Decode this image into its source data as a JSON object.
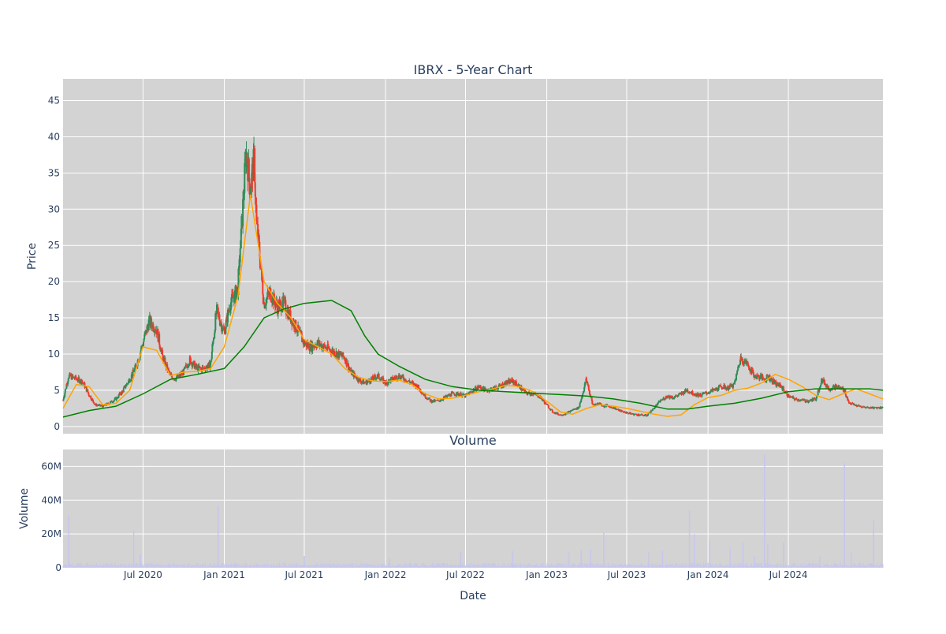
{
  "colors": {
    "plot_bg": "#d3d3d3",
    "grid": "#ffffff",
    "text": "#2a3f5f",
    "candle_up": "#2e8b57",
    "candle_down": "#ef3b2c",
    "ma_short": "#ffa500",
    "ma_long": "#008000",
    "volume_bar": "#c6c6ee"
  },
  "chart_data": [
    {
      "type": "candlestick",
      "title": "IBRX - 5-Year Chart",
      "ylabel": "Price",
      "xlabel": "",
      "ylim": [
        -1,
        48
      ],
      "yticks": [
        0,
        5,
        10,
        15,
        20,
        25,
        30,
        35,
        40,
        45
      ],
      "grid": true,
      "price_series": {
        "x": [
          "2020-01-02",
          "2020-01-15",
          "2020-02-01",
          "2020-02-15",
          "2020-03-01",
          "2020-03-15",
          "2020-04-01",
          "2020-04-15",
          "2020-05-01",
          "2020-05-15",
          "2020-06-01",
          "2020-06-15",
          "2020-07-01",
          "2020-07-15",
          "2020-08-01",
          "2020-08-15",
          "2020-09-01",
          "2020-09-15",
          "2020-10-01",
          "2020-10-15",
          "2020-11-01",
          "2020-11-15",
          "2020-12-01",
          "2020-12-15",
          "2021-01-01",
          "2021-01-15",
          "2021-02-01",
          "2021-02-10",
          "2021-02-20",
          "2021-03-01",
          "2021-03-10",
          "2021-03-15",
          "2021-03-22",
          "2021-04-01",
          "2021-04-15",
          "2021-05-01",
          "2021-05-15",
          "2021-06-01",
          "2021-06-15",
          "2021-07-01",
          "2021-07-15",
          "2021-08-01",
          "2021-08-15",
          "2021-09-01",
          "2021-09-15",
          "2021-10-01",
          "2021-10-15",
          "2021-11-01",
          "2021-11-15",
          "2021-12-01",
          "2021-12-15",
          "2022-01-01",
          "2022-01-15",
          "2022-02-01",
          "2022-02-15",
          "2022-03-01",
          "2022-03-15",
          "2022-04-01",
          "2022-04-15",
          "2022-05-01",
          "2022-05-15",
          "2022-06-01",
          "2022-06-15",
          "2022-07-01",
          "2022-07-15",
          "2022-08-01",
          "2022-08-15",
          "2022-09-01",
          "2022-09-15",
          "2022-10-01",
          "2022-10-15",
          "2022-11-01",
          "2022-11-15",
          "2022-12-01",
          "2022-12-15",
          "2023-01-01",
          "2023-01-15",
          "2023-02-01",
          "2023-02-15",
          "2023-03-01",
          "2023-03-15",
          "2023-04-01",
          "2023-04-15",
          "2023-05-01",
          "2023-05-10",
          "2023-05-15",
          "2023-06-01",
          "2023-06-15",
          "2023-07-01",
          "2023-07-15",
          "2023-08-01",
          "2023-08-15",
          "2023-09-01",
          "2023-09-15",
          "2023-10-01",
          "2023-10-15",
          "2023-11-01",
          "2023-11-15",
          "2023-12-01",
          "2023-12-15",
          "2024-01-01",
          "2024-01-15",
          "2024-02-01",
          "2024-02-15",
          "2024-03-01",
          "2024-03-15",
          "2024-04-01",
          "2024-04-15",
          "2024-05-01",
          "2024-05-10",
          "2024-05-15",
          "2024-06-01",
          "2024-06-15",
          "2024-07-01",
          "2024-07-15",
          "2024-08-01",
          "2024-08-15",
          "2024-09-01",
          "2024-09-15",
          "2024-10-01",
          "2024-10-15",
          "2024-11-01",
          "2024-11-05",
          "2024-11-15",
          "2024-12-01",
          "2024-12-15",
          "2025-01-01",
          "2025-01-15",
          "2025-01-31"
        ],
        "close": [
          3.6,
          7.0,
          6.6,
          6.2,
          4.4,
          3.0,
          2.8,
          3.2,
          3.8,
          4.8,
          6.5,
          8.2,
          11.5,
          14.5,
          13.5,
          9.5,
          7.0,
          6.6,
          7.5,
          9.2,
          8.0,
          8.0,
          8.5,
          16.0,
          13.0,
          17.0,
          19.0,
          28.0,
          38.0,
          33.0,
          37.0,
          28.0,
          24.0,
          17.0,
          18.5,
          16.5,
          17.0,
          15.0,
          13.5,
          11.5,
          11.0,
          11.5,
          11.0,
          10.5,
          10.0,
          9.5,
          7.5,
          6.5,
          6.0,
          6.5,
          7.0,
          6.0,
          6.5,
          7.0,
          6.5,
          6.0,
          5.5,
          4.2,
          3.5,
          3.5,
          4.0,
          4.5,
          4.5,
          4.2,
          4.8,
          5.5,
          5.0,
          5.2,
          5.5,
          6.0,
          6.3,
          5.5,
          4.6,
          4.5,
          4.2,
          3.0,
          2.0,
          1.6,
          1.8,
          2.3,
          2.6,
          6.5,
          3.0,
          3.2,
          2.8,
          2.9,
          2.6,
          2.2,
          1.9,
          1.7,
          1.6,
          1.5,
          2.5,
          3.5,
          4.2,
          4.0,
          4.5,
          5.0,
          4.5,
          4.3,
          4.7,
          5.0,
          5.5,
          5.3,
          5.8,
          9.5,
          8.5,
          7.0,
          6.8,
          6.5,
          7.0,
          6.0,
          5.5,
          4.2,
          3.8,
          3.6,
          3.5,
          3.8,
          6.5,
          5.2,
          5.5,
          5.2,
          5.0,
          3.3,
          2.9,
          2.7,
          2.6,
          2.6,
          2.6
        ]
      },
      "ma_short": {
        "x": [
          "2020-01-02",
          "2020-02-01",
          "2020-03-01",
          "2020-04-01",
          "2020-05-01",
          "2020-06-01",
          "2020-07-01",
          "2020-08-01",
          "2020-09-01",
          "2020-10-01",
          "2020-11-01",
          "2020-12-01",
          "2021-01-01",
          "2021-02-01",
          "2021-03-01",
          "2021-04-01",
          "2021-05-01",
          "2021-06-01",
          "2021-07-01",
          "2021-08-01",
          "2021-09-01",
          "2021-10-01",
          "2021-11-01",
          "2021-12-01",
          "2022-01-01",
          "2022-02-01",
          "2022-03-01",
          "2022-04-01",
          "2022-05-01",
          "2022-06-01",
          "2022-07-01",
          "2022-08-01",
          "2022-09-01",
          "2022-10-01",
          "2022-11-01",
          "2022-12-01",
          "2023-01-01",
          "2023-02-01",
          "2023-03-01",
          "2023-04-01",
          "2023-05-01",
          "2023-06-01",
          "2023-07-01",
          "2023-08-01",
          "2023-09-01",
          "2023-10-01",
          "2023-11-01",
          "2023-12-01",
          "2024-01-01",
          "2024-02-01",
          "2024-03-01",
          "2024-04-01",
          "2024-05-01",
          "2024-06-01",
          "2024-07-01",
          "2024-08-01",
          "2024-09-01",
          "2024-10-01",
          "2024-11-01",
          "2024-12-01",
          "2025-01-01",
          "2025-01-31"
        ],
        "values": [
          2.5,
          5.8,
          5.5,
          3.0,
          3.2,
          5.0,
          11.0,
          10.5,
          7.0,
          7.5,
          7.6,
          8.0,
          11.0,
          18.0,
          32.0,
          20.0,
          17.0,
          15.0,
          12.0,
          11.0,
          10.0,
          8.0,
          6.8,
          6.3,
          6.2,
          6.4,
          5.8,
          4.5,
          3.8,
          3.9,
          4.3,
          4.8,
          5.2,
          5.7,
          5.5,
          4.8,
          3.5,
          2.0,
          1.7,
          2.5,
          3.0,
          2.8,
          2.5,
          2.1,
          1.7,
          1.4,
          1.6,
          3.0,
          4.0,
          4.3,
          5.0,
          5.3,
          6.0,
          7.2,
          6.5,
          5.5,
          4.3,
          3.7,
          4.5,
          5.2,
          4.5,
          3.8
        ]
      },
      "ma_long": {
        "x": [
          "2020-01-02",
          "2020-03-01",
          "2020-05-01",
          "2020-07-01",
          "2020-09-01",
          "2020-11-01",
          "2021-01-01",
          "2021-02-15",
          "2021-04-01",
          "2021-05-15",
          "2021-07-01",
          "2021-09-01",
          "2021-10-15",
          "2021-11-15",
          "2021-12-15",
          "2022-02-01",
          "2022-04-01",
          "2022-06-01",
          "2022-08-01",
          "2022-10-01",
          "2022-12-01",
          "2023-02-01",
          "2023-04-01",
          "2023-06-01",
          "2023-08-01",
          "2023-10-01",
          "2023-11-15",
          "2024-01-01",
          "2024-03-01",
          "2024-05-01",
          "2024-07-01",
          "2024-09-01",
          "2024-11-01",
          "2025-01-01",
          "2025-01-31"
        ],
        "values": [
          1.3,
          2.2,
          2.8,
          4.5,
          6.5,
          7.2,
          8.0,
          11.0,
          15.0,
          16.2,
          17.0,
          17.4,
          16.0,
          12.5,
          10.0,
          8.3,
          6.5,
          5.5,
          5.0,
          4.8,
          4.6,
          4.4,
          4.2,
          3.8,
          3.2,
          2.4,
          2.4,
          2.8,
          3.2,
          3.9,
          4.8,
          5.2,
          5.2,
          5.2,
          5.0
        ]
      },
      "x_ticks": [
        "2020-07-01",
        "2021-01-01",
        "2021-07-01",
        "2022-01-01",
        "2022-07-01",
        "2023-01-01",
        "2023-07-01",
        "2024-01-01",
        "2024-07-01"
      ],
      "x_range": [
        "2020-01-02",
        "2025-01-31"
      ]
    },
    {
      "type": "bar",
      "title": "Volume",
      "ylabel": "Volume",
      "xlabel": "Date",
      "ylim": [
        0,
        70000000
      ],
      "yticks": [
        0,
        20000000,
        40000000,
        60000000
      ],
      "ytick_labels": [
        "0",
        "20M",
        "40M",
        "60M"
      ],
      "x_tick_labels": [
        "Jul 2020",
        "Jan 2021",
        "Jul 2021",
        "Jan 2022",
        "Jul 2022",
        "Jan 2023",
        "Jul 2023",
        "Jan 2024",
        "Jul 2024"
      ],
      "grid": true,
      "volume_spikes": {
        "x": [
          "2020-01-15",
          "2020-06-10",
          "2020-06-25",
          "2020-12-18",
          "2021-07-01",
          "2022-01-10",
          "2022-06-20",
          "2022-10-15",
          "2023-02-20",
          "2023-03-20",
          "2023-04-10",
          "2023-05-10",
          "2023-08-20",
          "2023-09-20",
          "2023-11-20",
          "2023-12-01",
          "2024-01-05",
          "2024-02-20",
          "2024-03-20",
          "2024-04-15",
          "2024-05-08",
          "2024-05-15",
          "2024-06-20",
          "2024-09-10",
          "2024-11-05",
          "2024-11-20",
          "2025-01-10"
        ],
        "values": [
          31000000,
          22000000,
          8000000,
          37000000,
          7000000,
          6000000,
          9000000,
          10000000,
          9000000,
          10000000,
          11000000,
          21000000,
          9000000,
          10000000,
          34000000,
          20000000,
          16000000,
          12000000,
          15000000,
          7000000,
          67000000,
          14000000,
          15000000,
          7000000,
          62000000,
          9000000,
          28000000
        ]
      }
    }
  ]
}
